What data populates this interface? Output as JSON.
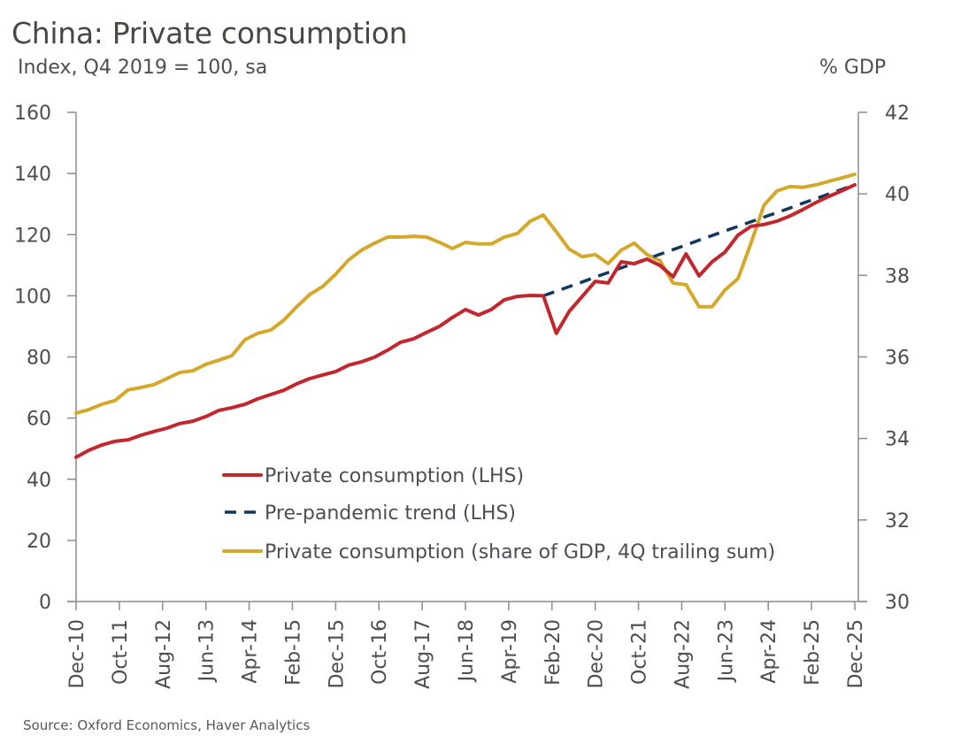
{
  "chart_data": {
    "type": "line",
    "title": "China: Private consumption",
    "subtitle": "Index, Q4 2019 = 100, sa",
    "ylabel_left": "Index, Q4 2019 = 100, sa",
    "ylabel_right": "% GDP",
    "xlabel": "",
    "source": "Source: Oxford Economics, Haver Analytics",
    "x_tick_labels": [
      "Dec-10",
      "Oct-11",
      "Aug-12",
      "Jun-13",
      "Apr-14",
      "Feb-15",
      "Dec-15",
      "Oct-16",
      "Aug-17",
      "Jun-18",
      "Apr-19",
      "Feb-20",
      "Dec-20",
      "Oct-21",
      "Aug-22",
      "Jun-23",
      "Apr-24",
      "Feb-25",
      "Dec-25"
    ],
    "x_range": [
      "Dec-10",
      "Dec-25"
    ],
    "x_frequency": "quarterly",
    "x_start": "Q4 2010",
    "y_left": {
      "min": 0,
      "max": 160,
      "ticks": [
        0,
        20,
        40,
        60,
        80,
        100,
        120,
        140,
        160
      ]
    },
    "y_right": {
      "min": 30,
      "max": 42,
      "ticks": [
        30,
        32,
        34,
        36,
        38,
        40,
        42
      ]
    },
    "grid": false,
    "legend_position": "lower-center",
    "colors": {
      "private": "#C1272D",
      "trend": "#12375F",
      "share": "#D4A82B",
      "axis": "#8a8c8f"
    },
    "series": [
      {
        "name": "Private consumption (LHS)",
        "axis": "left",
        "style": "solid",
        "color_key": "private",
        "start_index": 0,
        "values": [
          47.2,
          49.5,
          51.2,
          52.4,
          52.9,
          54.4,
          55.6,
          56.7,
          58.2,
          59.0,
          60.5,
          62.5,
          63.4,
          64.5,
          66.3,
          67.7,
          69.1,
          71.2,
          72.9,
          74.1,
          75.2,
          77.3,
          78.4,
          79.9,
          82.2,
          84.8,
          85.9,
          88.0,
          90.0,
          92.9,
          95.5,
          93.7,
          95.5,
          98.7,
          99.8,
          100.1,
          100.0,
          87.7,
          94.9,
          99.8,
          104.7,
          104.2,
          111.1,
          110.5,
          112.0,
          109.9,
          106.2,
          113.7,
          106.5,
          111.1,
          114.3,
          119.8,
          122.7,
          123.3,
          124.4,
          126.1,
          128.2,
          130.5,
          132.5,
          134.3,
          136.3
        ]
      },
      {
        "name": "Pre-pandemic trend (LHS)",
        "axis": "left",
        "style": "dashed",
        "color_key": "trend",
        "start_index": 36,
        "values": [
          100.0,
          101.5,
          103.0,
          104.5,
          106.1,
          107.6,
          109.1,
          110.6,
          112.1,
          113.6,
          115.1,
          116.6,
          118.2,
          119.7,
          121.2,
          122.7,
          124.2,
          125.7,
          127.2,
          128.7,
          130.3,
          131.8,
          133.3,
          134.8,
          136.3
        ]
      },
      {
        "name": "Private consumption (share of GDP, 4Q trailing sum)",
        "axis": "right",
        "style": "solid",
        "color_key": "share",
        "start_index": 0,
        "values": [
          34.62,
          34.71,
          34.84,
          34.93,
          35.19,
          35.25,
          35.32,
          35.47,
          35.62,
          35.66,
          35.82,
          35.92,
          36.03,
          36.42,
          36.58,
          36.66,
          36.9,
          37.23,
          37.53,
          37.73,
          38.03,
          38.38,
          38.62,
          38.79,
          38.94,
          38.94,
          38.96,
          38.94,
          38.81,
          38.66,
          38.81,
          38.77,
          38.77,
          38.94,
          39.03,
          39.33,
          39.48,
          39.07,
          38.64,
          38.46,
          38.51,
          38.29,
          38.62,
          38.79,
          38.51,
          38.36,
          37.81,
          37.77,
          37.23,
          37.23,
          37.64,
          37.92,
          38.79,
          39.72,
          40.07,
          40.18,
          40.16,
          40.22,
          40.31,
          40.39,
          40.48
        ]
      }
    ]
  }
}
